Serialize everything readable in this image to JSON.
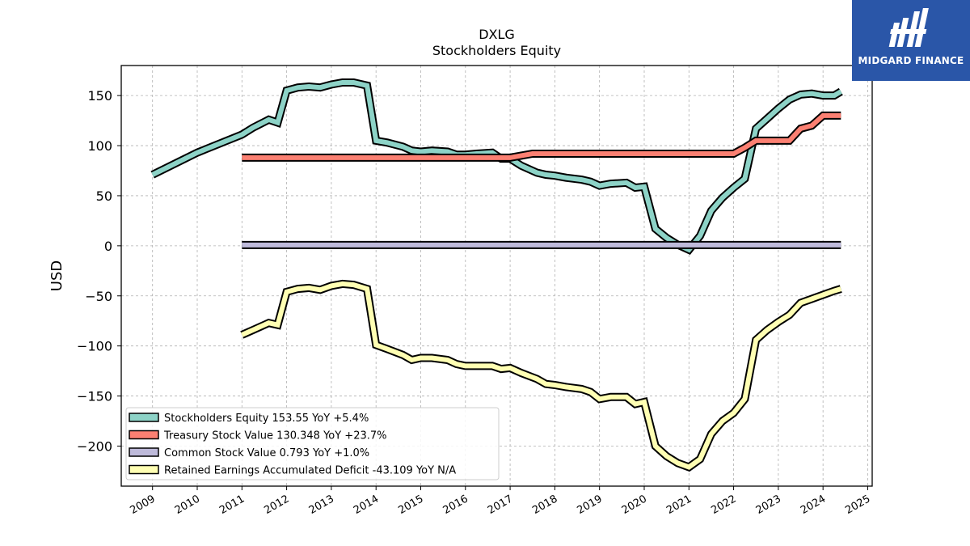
{
  "brand": {
    "name": "MIDGARD FINANCE",
    "color": "#2a56a8"
  },
  "chart_data": {
    "type": "line",
    "title": "DXLG",
    "subtitle": "Stockholders  Equity",
    "ylabel": "USD",
    "xlabel": "",
    "ylim": [
      -240,
      180
    ],
    "xlim": [
      2008.3,
      2025.1
    ],
    "grid": true,
    "legend_position": "bottom-left",
    "yticks": [
      150,
      100,
      50,
      0,
      -50,
      -100,
      -150,
      -200
    ],
    "ytick_labels": [
      "150",
      "100",
      "50",
      "0",
      "−50",
      "−100",
      "−150",
      "−200"
    ],
    "xticks": [
      2009,
      2010,
      2011,
      2012,
      2013,
      2014,
      2015,
      2016,
      2017,
      2018,
      2019,
      2020,
      2021,
      2022,
      2023,
      2024,
      2025
    ],
    "xtick_labels": [
      "2009",
      "2010",
      "2011",
      "2012",
      "2013",
      "2014",
      "2015",
      "2016",
      "2017",
      "2018",
      "2019",
      "2020",
      "2021",
      "2022",
      "2023",
      "2024",
      "2025"
    ],
    "series": [
      {
        "name": "Stockholders Equity",
        "legend_label": "Stockholders Equity  153.55 YoY +5.4%",
        "color": "#8dd3c7",
        "x": [
          2009.0,
          2010.0,
          2011.0,
          2011.25,
          2011.6,
          2011.8,
          2012.0,
          2012.25,
          2012.5,
          2012.75,
          2013.0,
          2013.25,
          2013.5,
          2013.8,
          2014.0,
          2014.25,
          2014.6,
          2014.8,
          2015.0,
          2015.25,
          2015.6,
          2015.8,
          2016.0,
          2016.25,
          2016.6,
          2016.8,
          2017.0,
          2017.25,
          2017.6,
          2017.8,
          2018.0,
          2018.25,
          2018.6,
          2018.8,
          2019.0,
          2019.25,
          2019.6,
          2019.8,
          2020.0,
          2020.25,
          2020.5,
          2020.75,
          2021.0,
          2021.25,
          2021.5,
          2021.75,
          2022.0,
          2022.25,
          2022.5,
          2022.75,
          2023.0,
          2023.25,
          2023.5,
          2023.75,
          2024.0,
          2024.25,
          2024.4
        ],
        "values": [
          71,
          93,
          111,
          118,
          126,
          123,
          155,
          158,
          159,
          158,
          161,
          163,
          163,
          160,
          105,
          103,
          99,
          95,
          94,
          95,
          94,
          91,
          91,
          92,
          93,
          87,
          87,
          80,
          73,
          71,
          70,
          68,
          66,
          64,
          60,
          62,
          63,
          58,
          59,
          17,
          8,
          1,
          -4,
          10,
          35,
          48,
          58,
          67,
          117,
          127,
          137,
          146,
          151,
          152,
          150,
          150,
          154
        ]
      },
      {
        "name": "Treasury Stock Value",
        "legend_label": "Treasury Stock Value  130.348 YoY +23.7%",
        "color": "#fb8072",
        "x": [
          2011.0,
          2016.0,
          2017.0,
          2017.25,
          2017.5,
          2018.0,
          2019.0,
          2020.0,
          2021.0,
          2022.0,
          2022.25,
          2022.5,
          2023.0,
          2023.25,
          2023.5,
          2023.75,
          2024.0,
          2024.25,
          2024.4
        ],
        "values": [
          88,
          88,
          88,
          90,
          92,
          92,
          92,
          92,
          92,
          92,
          98,
          105,
          105,
          105,
          117,
          120,
          130,
          130,
          130
        ]
      },
      {
        "name": "Common Stock Value",
        "legend_label": "Common Stock Value  0.793 YoY +1.0%",
        "color": "#bebada",
        "x": [
          2011.0,
          2015.0,
          2020.0,
          2024.4
        ],
        "values": [
          0.8,
          0.8,
          0.8,
          0.8
        ]
      },
      {
        "name": "Retained Earnings Accumulated Deficit",
        "legend_label": "Retained Earnings Accumulated Deficit  -43.109 YoY N/A",
        "color": "#ffffb3",
        "x": [
          2011.0,
          2011.25,
          2011.6,
          2011.8,
          2012.0,
          2012.25,
          2012.5,
          2012.75,
          2013.0,
          2013.25,
          2013.5,
          2013.8,
          2014.0,
          2014.25,
          2014.6,
          2014.8,
          2015.0,
          2015.25,
          2015.6,
          2015.8,
          2016.0,
          2016.25,
          2016.6,
          2016.8,
          2017.0,
          2017.25,
          2017.6,
          2017.8,
          2018.0,
          2018.25,
          2018.6,
          2018.8,
          2019.0,
          2019.25,
          2019.6,
          2019.8,
          2020.0,
          2020.25,
          2020.5,
          2020.75,
          2021.0,
          2021.25,
          2021.5,
          2021.75,
          2022.0,
          2022.25,
          2022.5,
          2022.75,
          2023.0,
          2023.25,
          2023.5,
          2023.75,
          2024.0,
          2024.25,
          2024.4
        ],
        "values": [
          -89,
          -84,
          -77,
          -79,
          -46,
          -43,
          -42,
          -44,
          -40,
          -38,
          -39,
          -43,
          -99,
          -103,
          -109,
          -114,
          -112,
          -112,
          -114,
          -118,
          -120,
          -120,
          -120,
          -123,
          -122,
          -127,
          -133,
          -138,
          -139,
          -141,
          -143,
          -146,
          -153,
          -151,
          -151,
          -158,
          -156,
          -200,
          -210,
          -217,
          -221,
          -213,
          -188,
          -175,
          -167,
          -153,
          -94,
          -84,
          -76,
          -69,
          -57,
          -53,
          -49,
          -45,
          -43
        ]
      }
    ]
  }
}
